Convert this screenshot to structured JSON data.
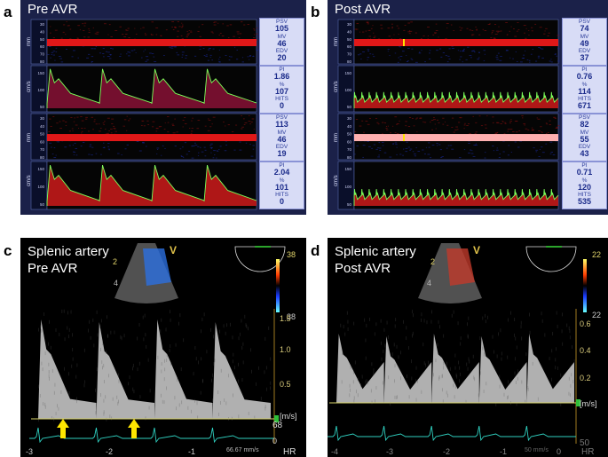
{
  "panels": {
    "a": {
      "letter": "a",
      "title": "Pre AVR"
    },
    "b": {
      "letter": "b",
      "title": "Post AVR"
    },
    "c": {
      "letter": "c",
      "title_line1": "Splenic artery",
      "title_line2": "Pre AVR"
    },
    "d": {
      "letter": "d",
      "title_line1": "Splenic artery",
      "title_line2": "Post AVR"
    }
  },
  "tcd_units": {
    "mmode": "mm",
    "spectrum": "cm/s"
  },
  "mmode_ticks": [
    "30",
    "40",
    "50",
    "60",
    "70",
    "80"
  ],
  "spectrum_ticks": [
    "150",
    "100",
    "50"
  ],
  "labels": {
    "psv": "PSV",
    "mv": "MV",
    "edv": "EDV",
    "pi": "PI",
    "pct": "%",
    "hits": "HITS"
  },
  "tcd_values": {
    "a_top": {
      "psv": "105",
      "mv": "46",
      "edv": "20",
      "pi": "1.86",
      "pct": "107",
      "hits": "0"
    },
    "a_bottom": {
      "psv": "113",
      "mv": "46",
      "edv": "19",
      "pi": "2.04",
      "pct": "101",
      "hits": "0"
    },
    "b_top": {
      "psv": "74",
      "mv": "49",
      "edv": "37",
      "pi": "0.76",
      "pct": "114",
      "hits": "671"
    },
    "b_bottom": {
      "psv": "82",
      "mv": "55",
      "edv": "43",
      "pi": "0.71",
      "pct": "120",
      "hits": "535"
    }
  },
  "us_c": {
    "color_scale_top": "38",
    "color_scale_bottom": "38",
    "yticks": [
      "1.5",
      "1.0",
      "0.5"
    ],
    "unit": "[m/s]",
    "xticks": [
      "-3",
      "-2",
      "-1",
      "0"
    ],
    "hr_value": "68",
    "hr_label": "HR",
    "speed": "66.67 mm/s",
    "probe_z": "2",
    "probe_4": "4"
  },
  "us_d": {
    "color_scale_top": "22",
    "color_scale_bottom": "22",
    "yticks": [
      "0.6",
      "0.4",
      "0.2"
    ],
    "unit": "[m/s]",
    "xticks": [
      "-4",
      "-3",
      "-2",
      "-1",
      "0"
    ],
    "hr_value": "50",
    "hr_label": "HR",
    "speed": "50 mm/s",
    "probe_z": "2",
    "probe_4": "4"
  },
  "colors": {
    "tcd_bg": "#1b2149",
    "envelope": "#7cff5a",
    "arrow": "#ffe600",
    "ecg": "#2fd0c0"
  }
}
